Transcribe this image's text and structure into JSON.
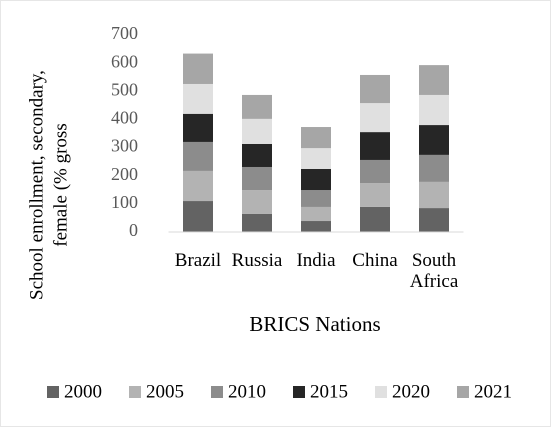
{
  "chart_data": {
    "type": "stacked_bar",
    "x_label": "BRICS Nations",
    "y_label": [
      "School enrollment, secondary,",
      "female (% gross"
    ],
    "categories": [
      "Brazil",
      "Russia",
      "India",
      "China",
      "South Africa"
    ],
    "series": [
      {
        "name": "2000",
        "color": "#636363",
        "values": [
          110,
          64,
          39,
          89,
          85
        ]
      },
      {
        "name": "2005",
        "color": "#b3b3b3",
        "values": [
          107,
          85,
          50,
          85,
          93
        ]
      },
      {
        "name": "2010",
        "color": "#8c8c8c",
        "values": [
          103,
          82,
          60,
          82,
          96
        ]
      },
      {
        "name": "2015",
        "color": "#262626",
        "values": [
          100,
          82,
          75,
          99,
          106
        ]
      },
      {
        "name": "2020",
        "color": "#e0e0e0",
        "values": [
          106,
          89,
          74,
          103,
          107
        ]
      },
      {
        "name": "2021",
        "color": "#a6a6a6",
        "values": [
          108,
          85,
          75,
          100,
          106
        ]
      }
    ],
    "ylim": [
      0,
      700
    ],
    "yticks": [
      0,
      100,
      200,
      300,
      400,
      500,
      600,
      700
    ],
    "grid": false,
    "legend": "bottom"
  }
}
